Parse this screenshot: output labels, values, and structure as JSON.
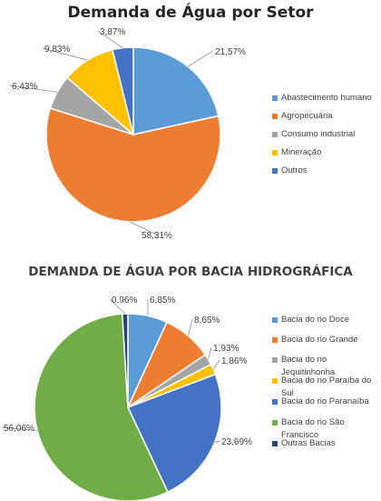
{
  "chart_data": [
    {
      "type": "pie",
      "title": "Demanda de Água por Setor",
      "categories": [
        "Abastecimento humano",
        "Agropecuária",
        "Consumo industrial",
        "Mineração",
        "Outros"
      ],
      "values": [
        21.57,
        58.31,
        6.43,
        9.83,
        3.87
      ],
      "labels": [
        "21,57%",
        "58,31%",
        "6,43%",
        "9,83%",
        "3,87%"
      ],
      "colors": [
        "#5b9bd5",
        "#ed7d31",
        "#a5a5a5",
        "#ffc000",
        "#4472c4"
      ],
      "legend": "right"
    },
    {
      "type": "pie",
      "title": "DEMANDA DE ÁGUA POR BACIA HIDROGRÁFICA",
      "categories": [
        "Bacia do rio Doce",
        "Bacia do rio Grande",
        "Bacia do rio Jequitinhonha",
        "Bacia do rio Paraíba do Sul",
        "Bacia do rio Paranaíba",
        "Bacia do rio São Francisco",
        "Outras Bacias"
      ],
      "values": [
        6.85,
        8.65,
        1.93,
        1.86,
        23.69,
        56.06,
        0.96
      ],
      "labels": [
        "6,85%",
        "8,65%",
        "1,93%",
        "1,86%",
        "23,69%",
        "56,06%",
        "0,96%"
      ],
      "colors": [
        "#5b9bd5",
        "#ed7d31",
        "#a5a5a5",
        "#ffc000",
        "#4472c4",
        "#70ad47",
        "#264478"
      ],
      "legend": "right"
    }
  ]
}
